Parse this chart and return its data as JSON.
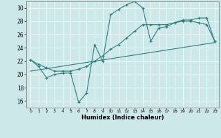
{
  "xlabel": "Humidex (Indice chaleur)",
  "xlim": [
    -0.5,
    23.5
  ],
  "ylim": [
    15,
    31
  ],
  "xticks": [
    0,
    1,
    2,
    3,
    4,
    5,
    6,
    7,
    8,
    9,
    10,
    11,
    12,
    13,
    14,
    15,
    16,
    17,
    18,
    19,
    20,
    21,
    22,
    23
  ],
  "yticks": [
    16,
    18,
    20,
    22,
    24,
    26,
    28,
    30
  ],
  "bg_color": "#cce8e8",
  "line_color": "#2a7d7d",
  "line1_x": [
    0,
    1,
    2,
    3,
    4,
    5,
    6,
    7,
    8,
    9,
    10,
    11,
    12,
    13,
    14,
    15,
    16,
    17,
    18,
    19,
    20,
    21,
    22,
    23
  ],
  "line1_y": [
    22.2,
    21.2,
    19.5,
    20.0,
    20.2,
    20.2,
    15.8,
    17.2,
    24.5,
    22.0,
    29.0,
    29.8,
    30.5,
    31.0,
    30.0,
    25.0,
    27.0,
    27.2,
    27.8,
    28.2,
    28.2,
    28.5,
    28.5,
    25.0
  ],
  "line2_x": [
    0,
    1,
    2,
    3,
    4,
    5,
    6,
    7,
    8,
    9,
    10,
    11,
    12,
    13,
    14,
    15,
    16,
    17,
    18,
    19,
    20,
    21,
    22,
    23
  ],
  "line2_y": [
    22.2,
    21.5,
    21.0,
    20.5,
    20.5,
    20.5,
    20.8,
    21.2,
    22.0,
    22.8,
    23.8,
    24.5,
    25.5,
    26.5,
    27.5,
    27.5,
    27.5,
    27.5,
    27.8,
    28.0,
    28.0,
    27.8,
    27.5,
    25.0
  ],
  "line3_x": [
    0,
    23
  ],
  "line3_y": [
    20.5,
    24.8
  ],
  "grid_color": "#b0d0d0"
}
